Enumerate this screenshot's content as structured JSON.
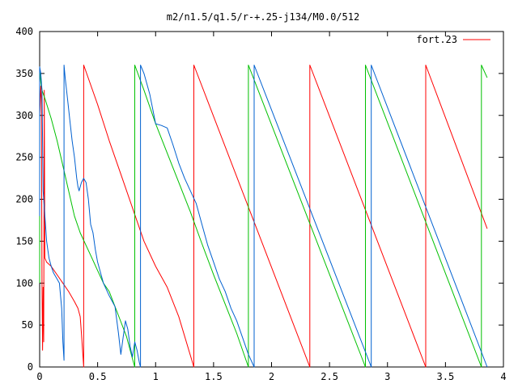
{
  "chart_data": {
    "type": "line",
    "title": "m2/n1.5/q1.5/r-+.25-j134/M0.0/512",
    "xlabel": "",
    "ylabel": "",
    "xlim": [
      0,
      4
    ],
    "ylim": [
      0,
      400
    ],
    "xticks": [
      {
        "v": 0,
        "label": "0"
      },
      {
        "v": 0.5,
        "label": "0.5"
      },
      {
        "v": 1,
        "label": "1"
      },
      {
        "v": 1.5,
        "label": "1.5"
      },
      {
        "v": 2,
        "label": "2"
      },
      {
        "v": 2.5,
        "label": "2.5"
      },
      {
        "v": 3,
        "label": "3"
      },
      {
        "v": 3.5,
        "label": "3.5"
      },
      {
        "v": 4,
        "label": "4"
      }
    ],
    "yticks": [
      {
        "v": 0,
        "label": "0"
      },
      {
        "v": 50,
        "label": "50"
      },
      {
        "v": 100,
        "label": "100"
      },
      {
        "v": 150,
        "label": "150"
      },
      {
        "v": 200,
        "label": "200"
      },
      {
        "v": 250,
        "label": "250"
      },
      {
        "v": 300,
        "label": "300"
      },
      {
        "v": 350,
        "label": "350"
      },
      {
        "v": 400,
        "label": "400"
      }
    ],
    "grid": false,
    "legend_position": "top-right",
    "series": [
      {
        "name": "fort.23",
        "color": "#ff0000",
        "points": [
          [
            0.0,
            300
          ],
          [
            0.01,
            335
          ],
          [
            0.015,
            320
          ],
          [
            0.02,
            100
          ],
          [
            0.025,
            20
          ],
          [
            0.03,
            95
          ],
          [
            0.035,
            30
          ],
          [
            0.04,
            330
          ],
          [
            0.045,
            130
          ],
          [
            0.06,
            125
          ],
          [
            0.1,
            120
          ],
          [
            0.15,
            110
          ],
          [
            0.2,
            100
          ],
          [
            0.25,
            90
          ],
          [
            0.3,
            78
          ],
          [
            0.33,
            70
          ],
          [
            0.35,
            60
          ],
          [
            0.36,
            40
          ],
          [
            0.37,
            20
          ],
          [
            0.38,
            0
          ],
          [
            0.38,
            360
          ],
          [
            0.5,
            313
          ],
          [
            0.6,
            270
          ],
          [
            0.7,
            230
          ],
          [
            0.8,
            190
          ],
          [
            0.9,
            150
          ],
          [
            1.0,
            120
          ],
          [
            1.1,
            95
          ],
          [
            1.2,
            60
          ],
          [
            1.33,
            0
          ],
          [
            1.33,
            360
          ],
          [
            2.33,
            0
          ],
          [
            2.33,
            360
          ],
          [
            3.33,
            0
          ],
          [
            3.33,
            360
          ],
          [
            3.86,
            165
          ]
        ]
      },
      {
        "name": "",
        "color": "#00c000",
        "points": [
          [
            0.0,
            100
          ],
          [
            0.0,
            355
          ],
          [
            0.01,
            340
          ],
          [
            0.02,
            330
          ],
          [
            0.05,
            318
          ],
          [
            0.1,
            296
          ],
          [
            0.15,
            270
          ],
          [
            0.2,
            240
          ],
          [
            0.25,
            210
          ],
          [
            0.3,
            180
          ],
          [
            0.35,
            160
          ],
          [
            0.4,
            145
          ],
          [
            0.45,
            130
          ],
          [
            0.5,
            115
          ],
          [
            0.55,
            100
          ],
          [
            0.6,
            90
          ],
          [
            0.65,
            72
          ],
          [
            0.7,
            54
          ],
          [
            0.75,
            36
          ],
          [
            0.8,
            10
          ],
          [
            0.82,
            0
          ],
          [
            0.82,
            360
          ],
          [
            0.9,
            330
          ],
          [
            1.0,
            290
          ],
          [
            1.1,
            255
          ],
          [
            1.2,
            220
          ],
          [
            1.3,
            185
          ],
          [
            1.4,
            147
          ],
          [
            1.5,
            110
          ],
          [
            1.6,
            75
          ],
          [
            1.7,
            40
          ],
          [
            1.8,
            0
          ],
          [
            1.8,
            360
          ],
          [
            2.81,
            0
          ],
          [
            2.81,
            360
          ],
          [
            3.81,
            0
          ],
          [
            3.81,
            360
          ],
          [
            3.86,
            345
          ]
        ]
      },
      {
        "name": "",
        "color": "#0060d0",
        "points": [
          [
            0.0,
            180
          ],
          [
            0.0,
            358
          ],
          [
            0.01,
            350
          ],
          [
            0.02,
            330
          ],
          [
            0.03,
            210
          ],
          [
            0.04,
            190
          ],
          [
            0.05,
            170
          ],
          [
            0.06,
            150
          ],
          [
            0.08,
            130
          ],
          [
            0.1,
            120
          ],
          [
            0.12,
            112
          ],
          [
            0.15,
            105
          ],
          [
            0.17,
            100
          ],
          [
            0.19,
            70
          ],
          [
            0.2,
            30
          ],
          [
            0.21,
            8
          ],
          [
            0.21,
            360
          ],
          [
            0.22,
            345
          ],
          [
            0.24,
            320
          ],
          [
            0.26,
            295
          ],
          [
            0.28,
            270
          ],
          [
            0.3,
            250
          ],
          [
            0.32,
            225
          ],
          [
            0.33,
            215
          ],
          [
            0.34,
            210
          ],
          [
            0.36,
            220
          ],
          [
            0.38,
            225
          ],
          [
            0.4,
            220
          ],
          [
            0.42,
            200
          ],
          [
            0.44,
            170
          ],
          [
            0.46,
            160
          ],
          [
            0.48,
            140
          ],
          [
            0.5,
            125
          ],
          [
            0.55,
            100
          ],
          [
            0.6,
            85
          ],
          [
            0.65,
            72
          ],
          [
            0.68,
            40
          ],
          [
            0.7,
            15
          ],
          [
            0.72,
            35
          ],
          [
            0.74,
            55
          ],
          [
            0.76,
            45
          ],
          [
            0.78,
            25
          ],
          [
            0.8,
            12
          ],
          [
            0.82,
            30
          ],
          [
            0.84,
            20
          ],
          [
            0.86,
            5
          ],
          [
            0.87,
            0
          ],
          [
            0.87,
            360
          ],
          [
            0.9,
            350
          ],
          [
            0.95,
            325
          ],
          [
            1.0,
            290
          ],
          [
            1.05,
            288
          ],
          [
            1.1,
            285
          ],
          [
            1.15,
            265
          ],
          [
            1.2,
            243
          ],
          [
            1.25,
            225
          ],
          [
            1.3,
            210
          ],
          [
            1.35,
            195
          ],
          [
            1.4,
            170
          ],
          [
            1.45,
            145
          ],
          [
            1.5,
            125
          ],
          [
            1.55,
            105
          ],
          [
            1.6,
            90
          ],
          [
            1.65,
            70
          ],
          [
            1.7,
            55
          ],
          [
            1.75,
            35
          ],
          [
            1.8,
            15
          ],
          [
            1.85,
            0
          ],
          [
            1.85,
            360
          ],
          [
            2.86,
            0
          ],
          [
            2.86,
            360
          ],
          [
            3.86,
            0
          ]
        ]
      }
    ]
  }
}
